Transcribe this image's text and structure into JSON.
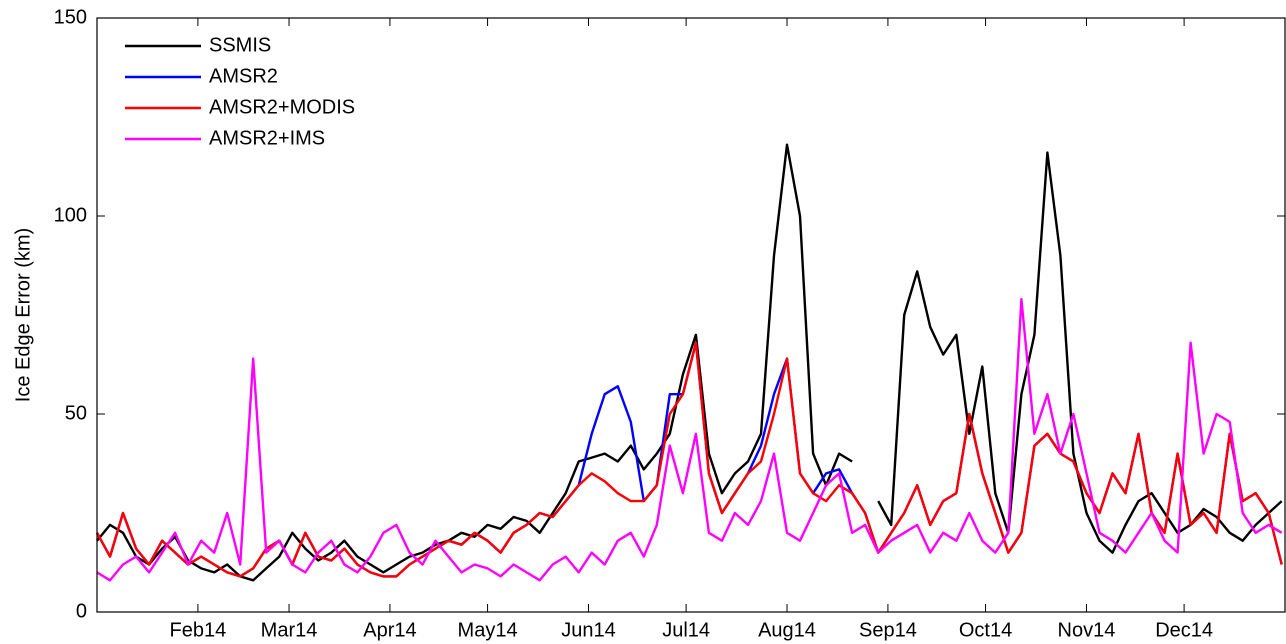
{
  "chart_data": {
    "type": "line",
    "ylabel": "Ice Edge Error (km)",
    "x": [
      1,
      5,
      9,
      13,
      17,
      21,
      25,
      29,
      33,
      37,
      41,
      45,
      49,
      53,
      57,
      61,
      65,
      69,
      73,
      77,
      81,
      85,
      89,
      93,
      97,
      101,
      105,
      109,
      113,
      117,
      121,
      125,
      129,
      133,
      137,
      141,
      145,
      149,
      153,
      157,
      161,
      165,
      169,
      173,
      177,
      181,
      185,
      189,
      193,
      197,
      201,
      205,
      209,
      213,
      217,
      221,
      225,
      229,
      233,
      237,
      241,
      245,
      249,
      253,
      257,
      261,
      265,
      269,
      273,
      277,
      281,
      285,
      289,
      293,
      297,
      301,
      305,
      309,
      313,
      317,
      321,
      325,
      329,
      333,
      337,
      341,
      345,
      349,
      353,
      357,
      361,
      365
    ],
    "xlim": [
      1,
      366
    ],
    "xticks": [
      {
        "value": 32,
        "label": "Feb14"
      },
      {
        "value": 60,
        "label": "Mar14"
      },
      {
        "value": 91,
        "label": "Apr14"
      },
      {
        "value": 121,
        "label": "May14"
      },
      {
        "value": 152,
        "label": "Jun14"
      },
      {
        "value": 182,
        "label": "Jul14"
      },
      {
        "value": 213,
        "label": "Aug14"
      },
      {
        "value": 244,
        "label": "Sep14"
      },
      {
        "value": 274,
        "label": "Oct14"
      },
      {
        "value": 305,
        "label": "Nov14"
      },
      {
        "value": 335,
        "label": "Dec14"
      }
    ],
    "ylim": [
      0,
      150
    ],
    "yticks": [
      0,
      50,
      100,
      150
    ],
    "legend": "upper left",
    "series": [
      {
        "name": "SSMIS",
        "color": "#000000",
        "values": [
          18,
          22,
          20,
          14,
          12,
          16,
          19,
          13,
          11,
          10,
          12,
          9,
          8,
          11,
          14,
          20,
          16,
          13,
          15,
          18,
          14,
          12,
          10,
          12,
          14,
          15,
          17,
          18,
          20,
          19,
          22,
          21,
          24,
          23,
          20,
          25,
          30,
          38,
          39,
          40,
          38,
          42,
          36,
          40,
          45,
          60,
          70,
          40,
          30,
          35,
          38,
          45,
          90,
          118,
          100,
          40,
          32,
          40,
          38,
          null,
          28,
          22,
          75,
          86,
          72,
          65,
          70,
          45,
          62,
          30,
          20,
          55,
          70,
          116,
          90,
          40,
          25,
          18,
          15,
          22,
          28,
          30,
          25,
          20,
          22,
          26,
          24,
          20,
          18,
          22,
          25,
          28
        ]
      },
      {
        "name": "AMSR2",
        "color": "#0000ff",
        "values": [
          20,
          14,
          25,
          16,
          12,
          18,
          15,
          12,
          14,
          12,
          10,
          9,
          11,
          16,
          18,
          12,
          20,
          14,
          13,
          16,
          12,
          10,
          9,
          9,
          12,
          14,
          16,
          18,
          17,
          20,
          18,
          15,
          20,
          22,
          25,
          24,
          28,
          32,
          45,
          55,
          57,
          48,
          28,
          32,
          55,
          55,
          68,
          35,
          25,
          30,
          35,
          42,
          55,
          64,
          35,
          30,
          35,
          36,
          30,
          25,
          15,
          20,
          25,
          32,
          22,
          28,
          30,
          50,
          35,
          25,
          15,
          20,
          42,
          45,
          40,
          38,
          30,
          25,
          35,
          30,
          45,
          25,
          20,
          40,
          22,
          25,
          20,
          45,
          28,
          30,
          25,
          12
        ]
      },
      {
        "name": "AMSR2+MODIS",
        "color": "#ff0000",
        "values": [
          20,
          14,
          25,
          16,
          12,
          18,
          15,
          12,
          14,
          12,
          10,
          9,
          11,
          16,
          18,
          12,
          20,
          14,
          13,
          16,
          12,
          10,
          9,
          9,
          12,
          14,
          16,
          18,
          17,
          20,
          18,
          15,
          20,
          22,
          25,
          24,
          28,
          32,
          35,
          33,
          30,
          28,
          28,
          32,
          50,
          55,
          68,
          35,
          25,
          30,
          35,
          38,
          50,
          64,
          35,
          30,
          28,
          32,
          30,
          25,
          15,
          20,
          25,
          32,
          22,
          28,
          30,
          50,
          35,
          25,
          15,
          20,
          42,
          45,
          40,
          38,
          30,
          25,
          35,
          30,
          45,
          25,
          20,
          40,
          22,
          25,
          20,
          45,
          28,
          30,
          25,
          12
        ]
      },
      {
        "name": "AMSR2+IMS",
        "color": "#ff00ff",
        "values": [
          10,
          8,
          12,
          14,
          10,
          15,
          20,
          12,
          18,
          15,
          25,
          12,
          64,
          15,
          18,
          12,
          10,
          15,
          18,
          12,
          10,
          14,
          20,
          22,
          15,
          12,
          18,
          14,
          10,
          12,
          11,
          9,
          12,
          10,
          8,
          12,
          14,
          10,
          15,
          12,
          18,
          20,
          14,
          22,
          42,
          30,
          45,
          20,
          18,
          25,
          22,
          28,
          40,
          20,
          18,
          25,
          32,
          35,
          20,
          22,
          15,
          18,
          20,
          22,
          15,
          20,
          18,
          25,
          18,
          15,
          20,
          79,
          45,
          55,
          40,
          50,
          35,
          20,
          18,
          15,
          20,
          25,
          18,
          15,
          68,
          40,
          50,
          48,
          25,
          20,
          22,
          20
        ]
      }
    ]
  }
}
